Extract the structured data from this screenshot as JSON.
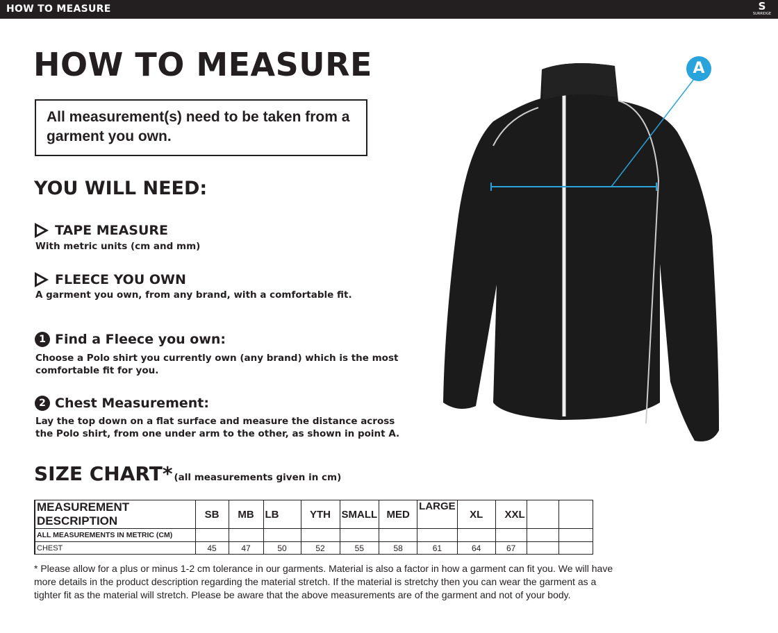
{
  "topbar": {
    "title": "HOW TO MEASURE",
    "logo_text": "SURRIDGE"
  },
  "title": "HOW TO MEASURE",
  "note": "All measurement(s) need to be taken from a garment you own.",
  "you_will_need": "YOU WILL NEED:",
  "items": [
    {
      "title": "TAPE MEASURE",
      "desc": "With metric units (cm and mm)"
    },
    {
      "title": "FLEECE YOU OWN",
      "desc": "A garment you own, from any brand, with a comfortable fit."
    }
  ],
  "steps": [
    {
      "num": "1",
      "title": "Find a Fleece you own:",
      "desc": "Choose a Polo shirt you currently own (any brand) which is the most comfortable fit for you."
    },
    {
      "num": "2",
      "title": "Chest Measurement:",
      "desc": "Lay the top down on a flat surface and measure the distance across the Polo shirt, from one under arm to the other, as shown in point A."
    }
  ],
  "size_chart": {
    "title": "SIZE CHART*",
    "subtitle": "(all measurements given in cm)",
    "header": [
      "MEASUREMENT DESCRIPTION",
      "SB",
      "MB",
      "LB",
      "YTH",
      "SMALL",
      "MED",
      "LARGE",
      "XL",
      "XXL",
      "",
      ""
    ],
    "rows": [
      [
        "ALL MEASUREMENTS IN METRIC (CM)",
        "",
        "",
        "",
        "",
        "",
        "",
        "",
        "",
        "",
        "",
        ""
      ],
      [
        "CHEST",
        "45",
        "47",
        "50",
        "52",
        "55",
        "58",
        "61",
        "64",
        "67",
        "",
        ""
      ]
    ]
  },
  "footnote": "* Please allow for a plus or minus 1-2 cm tolerance in our garments. Material is also a factor in how a garment can fit you. We will have more details in the product description regarding the material stretch.  If the material is stretchy then you can wear the garment as a tighter fit as the material will stretch.  Please be aware that the above measurements are of the garment and not of your body.",
  "point_label": "A",
  "colors": {
    "accent": "#29a3dc",
    "dark": "#231f20"
  }
}
